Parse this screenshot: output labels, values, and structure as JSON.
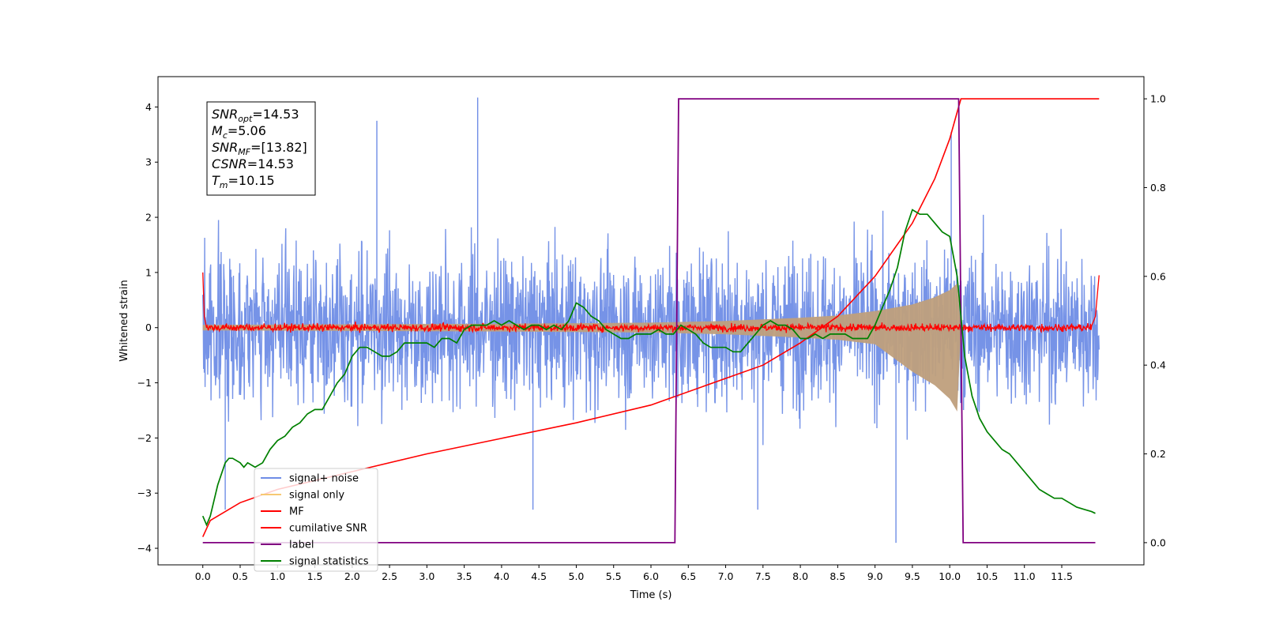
{
  "chart_data": {
    "type": "line",
    "xlabel": "Time (s)",
    "ylabel": "Whitened strain",
    "xlim": [
      -0.6,
      12.6
    ],
    "ylim": [
      -4.3,
      4.55
    ],
    "y2lim": [
      -0.05,
      1.05
    ],
    "xticks": [
      "0.0",
      "0.5",
      "1.0",
      "1.5",
      "2.0",
      "2.5",
      "3.0",
      "3.5",
      "4.0",
      "4.5",
      "5.0",
      "5.5",
      "6.0",
      "6.5",
      "7.0",
      "7.5",
      "8.0",
      "8.5",
      "9.0",
      "9.5",
      "10.0",
      "10.5",
      "11.0",
      "11.5"
    ],
    "yticks": [
      "4",
      "3",
      "2",
      "1",
      "0",
      "−1",
      "−2",
      "−3",
      "−4"
    ],
    "y2ticks": [
      "1.0",
      "0.8",
      "0.6",
      "0.4",
      "0.2",
      "0.0"
    ],
    "grid": false,
    "legend_position": "lower-left",
    "colors": {
      "noise": "#6f8de6",
      "signal": "#f7c873",
      "signal_fill": "#bf9f7c",
      "mf": "#ff0000",
      "csnr": "#ff0000",
      "label": "#800080",
      "stats": "#008000"
    },
    "annotation": {
      "line1_main": "SNR",
      "line1_sub": "opt",
      "line1_val": "=14.53",
      "line2_main": "M",
      "line2_sub": "c",
      "line2_val": "=5.06",
      "line3_main": "SNR",
      "line3_sub": "MF",
      "line3_val": "=[13.82]",
      "line4_main": "CSNR",
      "line4_val": "=14.53",
      "line5_main": "T",
      "line5_sub": "m",
      "line5_val": "=10.15"
    },
    "legend": [
      {
        "label": "signal+ noise",
        "color": "#6f8de6"
      },
      {
        "label": "signal only",
        "color": "#f7c873"
      },
      {
        "label": "MF",
        "color": "#ff0000"
      },
      {
        "label": "cumilative SNR",
        "color": "#ff0000"
      },
      {
        "label": "label",
        "color": "#800080"
      },
      {
        "label": "signal statistics",
        "color": "#008000"
      }
    ],
    "series": [
      {
        "name": "signal+ noise",
        "axis": "left",
        "t_range": [
          0.0,
          12.0
        ],
        "amplitude_upper_approx": [
          1.6,
          3.3
        ],
        "amplitude_lower_approx": [
          -1.6,
          -3.3
        ],
        "peak_max": 4.17,
        "peak_min": -3.9
      },
      {
        "name": "signal only",
        "axis": "left",
        "envelope_t": [
          0.0,
          2.0,
          4.0,
          6.0,
          7.0,
          8.0,
          8.5,
          9.0,
          9.5,
          9.8,
          10.0,
          10.1,
          10.15
        ],
        "envelope_amp": [
          0.05,
          0.06,
          0.07,
          0.09,
          0.12,
          0.18,
          0.22,
          0.3,
          0.42,
          0.55,
          0.68,
          0.8,
          0.0
        ]
      },
      {
        "name": "MF",
        "axis": "left",
        "x": [
          0.0,
          0.02,
          0.05,
          6.0,
          11.9,
          11.95,
          12.0
        ],
        "y": [
          1.0,
          0.2,
          0.0,
          0.0,
          0.0,
          0.2,
          0.95
        ],
        "noise_amplitude": 0.08
      },
      {
        "name": "cumilative SNR",
        "axis": "right",
        "x": [
          0.0,
          0.1,
          0.5,
          1.0,
          2.0,
          3.0,
          4.0,
          5.0,
          6.0,
          7.0,
          7.5,
          8.0,
          8.5,
          9.0,
          9.5,
          9.8,
          10.0,
          10.1,
          10.15,
          12.0
        ],
        "y": [
          0.013,
          0.05,
          0.09,
          0.12,
          0.16,
          0.2,
          0.235,
          0.27,
          0.31,
          0.37,
          0.4,
          0.45,
          0.51,
          0.6,
          0.72,
          0.82,
          0.91,
          0.97,
          1.0,
          1.0
        ]
      },
      {
        "name": "label",
        "axis": "right",
        "x": [
          0.0,
          6.32,
          6.37,
          10.12,
          10.18,
          11.95
        ],
        "y": [
          0.0,
          0.0,
          1.0,
          1.0,
          0.0,
          0.0
        ]
      },
      {
        "name": "signal statistics",
        "axis": "right",
        "x": [
          0.0,
          0.05,
          0.1,
          0.2,
          0.3,
          0.35,
          0.4,
          0.5,
          0.55,
          0.6,
          0.7,
          0.8,
          0.9,
          1.0,
          1.1,
          1.2,
          1.3,
          1.4,
          1.5,
          1.6,
          1.7,
          1.8,
          1.9,
          2.0,
          2.1,
          2.2,
          2.3,
          2.4,
          2.5,
          2.6,
          2.7,
          2.8,
          2.9,
          3.0,
          3.1,
          3.2,
          3.3,
          3.4,
          3.5,
          3.6,
          3.7,
          3.8,
          3.9,
          4.0,
          4.1,
          4.2,
          4.3,
          4.4,
          4.5,
          4.6,
          4.7,
          4.8,
          4.9,
          5.0,
          5.1,
          5.2,
          5.3,
          5.4,
          5.5,
          5.6,
          5.7,
          5.8,
          5.9,
          6.0,
          6.1,
          6.2,
          6.3,
          6.4,
          6.5,
          6.6,
          6.7,
          6.8,
          6.9,
          7.0,
          7.1,
          7.2,
          7.3,
          7.4,
          7.5,
          7.6,
          7.7,
          7.8,
          7.9,
          8.0,
          8.1,
          8.2,
          8.3,
          8.4,
          8.5,
          8.6,
          8.7,
          8.8,
          8.9,
          9.0,
          9.1,
          9.2,
          9.3,
          9.4,
          9.5,
          9.6,
          9.7,
          9.8,
          9.9,
          10.0,
          10.1,
          10.2,
          10.3,
          10.4,
          10.5,
          10.6,
          10.7,
          10.8,
          10.9,
          11.0,
          11.1,
          11.2,
          11.3,
          11.4,
          11.5,
          11.6,
          11.7,
          11.8,
          11.9,
          11.95
        ],
        "y": [
          0.06,
          0.04,
          0.06,
          0.13,
          0.18,
          0.19,
          0.19,
          0.18,
          0.17,
          0.18,
          0.17,
          0.18,
          0.21,
          0.23,
          0.24,
          0.26,
          0.27,
          0.29,
          0.3,
          0.3,
          0.33,
          0.36,
          0.38,
          0.42,
          0.44,
          0.44,
          0.43,
          0.42,
          0.42,
          0.43,
          0.45,
          0.45,
          0.45,
          0.45,
          0.44,
          0.46,
          0.46,
          0.45,
          0.48,
          0.49,
          0.49,
          0.49,
          0.5,
          0.49,
          0.5,
          0.49,
          0.48,
          0.49,
          0.49,
          0.48,
          0.49,
          0.48,
          0.5,
          0.54,
          0.53,
          0.51,
          0.5,
          0.48,
          0.47,
          0.46,
          0.46,
          0.47,
          0.47,
          0.47,
          0.48,
          0.47,
          0.47,
          0.49,
          0.48,
          0.47,
          0.45,
          0.44,
          0.44,
          0.44,
          0.43,
          0.43,
          0.45,
          0.47,
          0.49,
          0.5,
          0.49,
          0.49,
          0.48,
          0.46,
          0.46,
          0.47,
          0.46,
          0.47,
          0.47,
          0.47,
          0.46,
          0.46,
          0.46,
          0.49,
          0.53,
          0.57,
          0.62,
          0.7,
          0.75,
          0.74,
          0.74,
          0.72,
          0.7,
          0.69,
          0.6,
          0.42,
          0.33,
          0.28,
          0.25,
          0.23,
          0.21,
          0.2,
          0.18,
          0.16,
          0.14,
          0.12,
          0.11,
          0.1,
          0.1,
          0.09,
          0.08,
          0.075,
          0.07,
          0.066
        ]
      }
    ]
  }
}
